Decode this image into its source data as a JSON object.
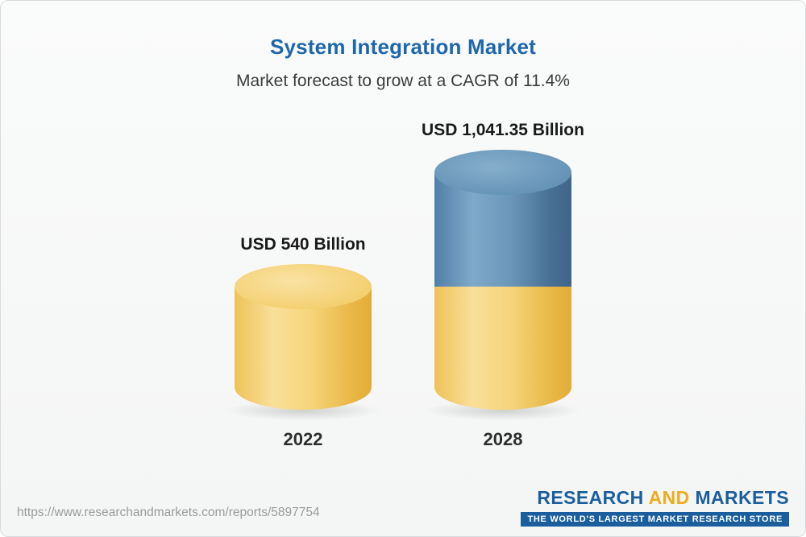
{
  "chart_data": {
    "type": "bar",
    "title": "System Integration Market",
    "subtitle": "Market forecast to grow at a CAGR of 11.4%",
    "unit": "USD Billion",
    "categories": [
      "2022",
      "2028"
    ],
    "values": [
      540,
      1041.35
    ],
    "value_labels": [
      "USD 540 Billion",
      "USD 1,041.35 Billion"
    ],
    "ylim": [
      0,
      1041.35
    ],
    "grid": "off",
    "legend": "none",
    "colors": {
      "base_cylinder": "#f3cd6b",
      "growth_cylinder": "#4f7ea6",
      "title_text": "#1e67ad"
    },
    "note": "2028 cylinder is stacked: yellow base equals the 2022 value, blue top is forecast growth"
  },
  "footer": {
    "url": "https://www.researchandmarkets.com/reports/5897754",
    "logo": {
      "research": "RESEARCH",
      "and": "AND",
      "markets": "MARKETS",
      "tagline": "THE WORLD'S LARGEST MARKET RESEARCH STORE",
      "blue": "#1b5e9d",
      "gold": "#efac1e"
    }
  }
}
